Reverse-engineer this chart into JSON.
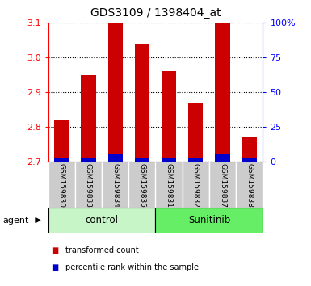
{
  "title": "GDS3109 / 1398404_at",
  "samples": [
    "GSM159830",
    "GSM159833",
    "GSM159834",
    "GSM159835",
    "GSM159831",
    "GSM159832",
    "GSM159837",
    "GSM159838"
  ],
  "red_values": [
    2.82,
    2.95,
    3.1,
    3.04,
    2.96,
    2.87,
    3.1,
    2.77
  ],
  "blue_values": [
    0.012,
    0.012,
    0.022,
    0.012,
    0.012,
    0.012,
    0.022,
    0.012
  ],
  "y_min": 2.7,
  "y_max": 3.1,
  "y_ticks": [
    2.7,
    2.8,
    2.9,
    3.0,
    3.1
  ],
  "right_y_ticks": [
    0,
    25,
    50,
    75,
    100
  ],
  "right_y_labels": [
    "0",
    "25",
    "50",
    "75",
    "100%"
  ],
  "groups": [
    {
      "label": "control",
      "indices": [
        0,
        1,
        2,
        3
      ],
      "color": "#c8f5c8"
    },
    {
      "label": "Sunitinib",
      "indices": [
        4,
        5,
        6,
        7
      ],
      "color": "#66ee66"
    }
  ],
  "agent_label": "agent",
  "bar_color_red": "#cc0000",
  "bar_color_blue": "#0000cc",
  "bar_width": 0.55,
  "sample_box_color": "#cccccc",
  "legend_items": [
    {
      "color": "#cc0000",
      "label": "transformed count"
    },
    {
      "color": "#0000cc",
      "label": "percentile rank within the sample"
    }
  ]
}
